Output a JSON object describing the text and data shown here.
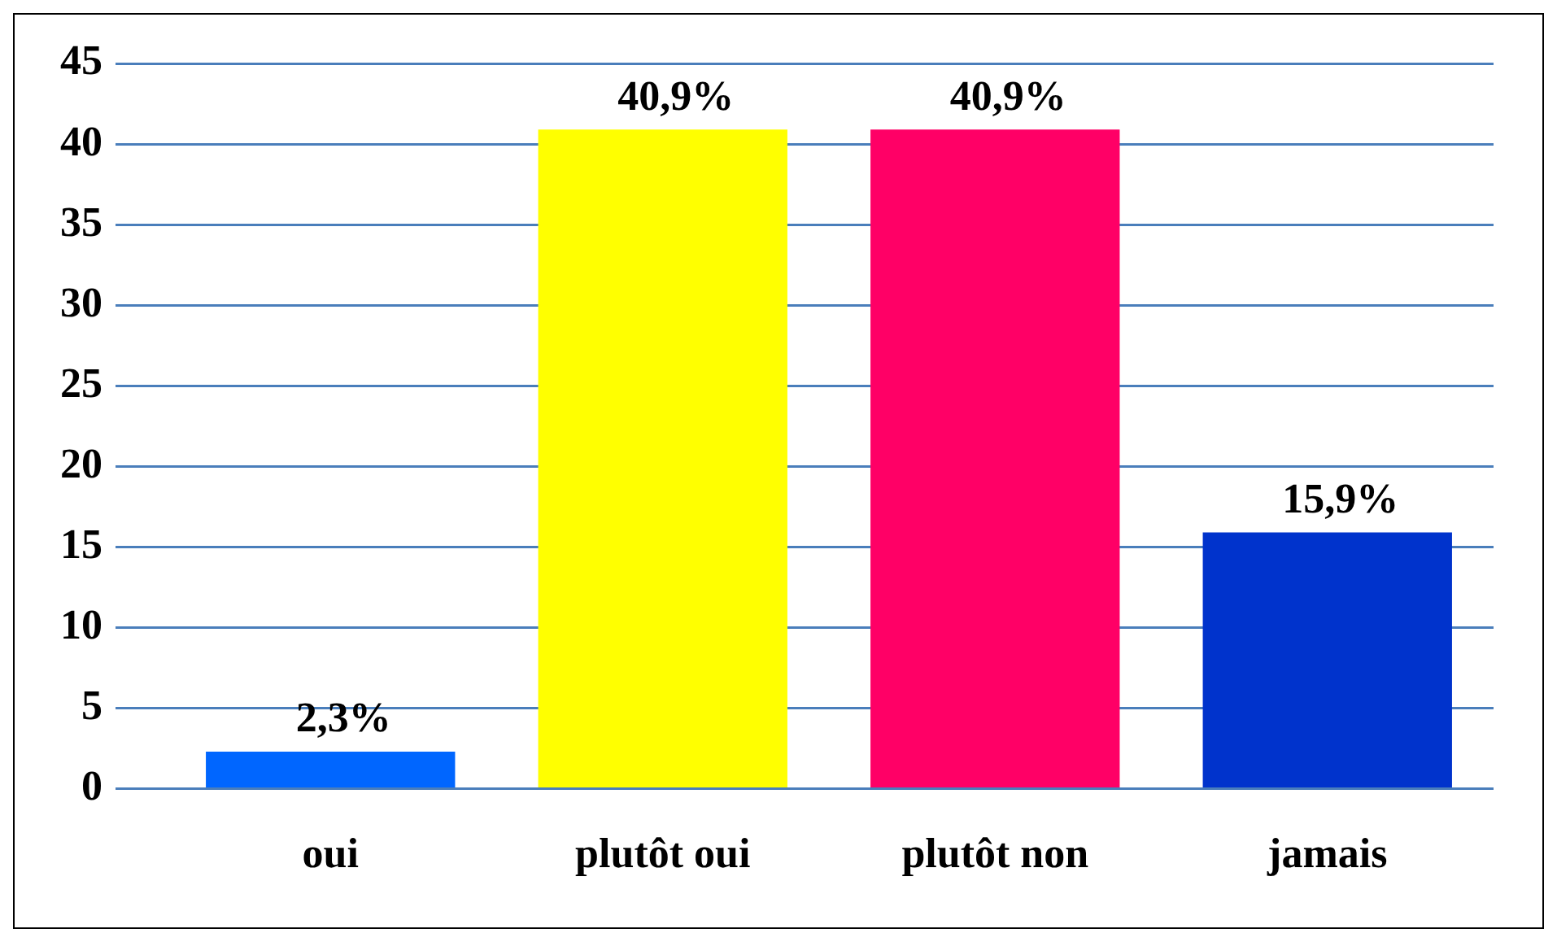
{
  "chart_data": {
    "type": "bar",
    "categories": [
      "oui",
      "plutôt oui",
      "plutôt non",
      "jamais"
    ],
    "values": [
      2.3,
      40.9,
      40.9,
      15.9
    ],
    "colors": [
      "#0066ff",
      "#ffff00",
      "#ff0066",
      "#0033cc"
    ],
    "value_labels": [
      "2,3%",
      "40,9%",
      "40,9%",
      "15,9%"
    ],
    "ylim": [
      0,
      45
    ],
    "yticks": [
      0,
      5,
      10,
      15,
      20,
      25,
      30,
      35,
      40,
      45
    ],
    "grid": "y",
    "legend": false
  }
}
